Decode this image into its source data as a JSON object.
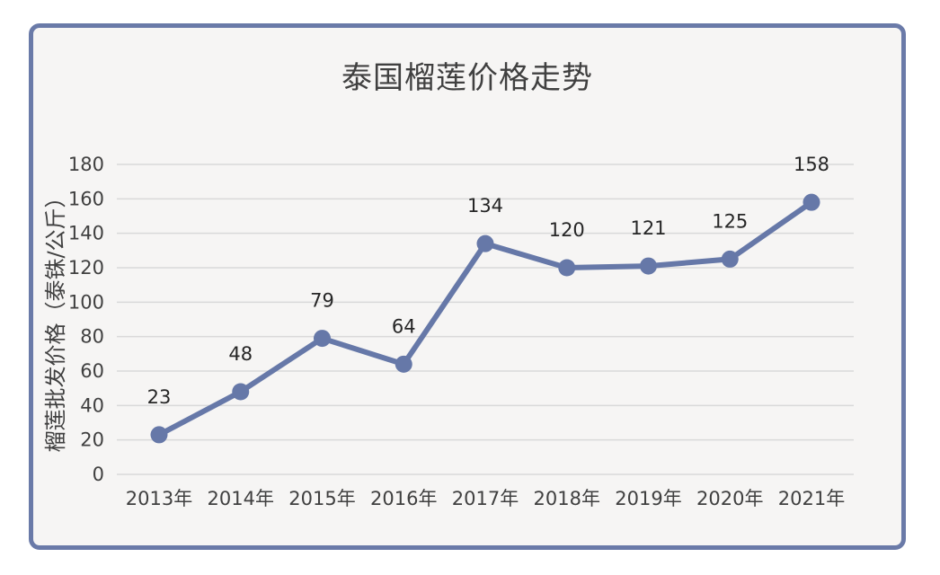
{
  "chart_data": {
    "type": "line",
    "title": "泰国榴莲价格走势",
    "ylabel": "榴莲批发价格（泰铢/公斤）",
    "xlabel": "",
    "categories": [
      "2013年",
      "2014年",
      "2015年",
      "2016年",
      "2017年",
      "2018年",
      "2019年",
      "2020年",
      "2021年"
    ],
    "values": [
      23,
      48,
      79,
      64,
      134,
      120,
      121,
      125,
      158
    ],
    "ylim": [
      0,
      180
    ],
    "yticks": [
      0,
      20,
      40,
      60,
      80,
      100,
      120,
      140,
      160,
      180
    ],
    "grid": true,
    "legend": "none",
    "colors": {
      "line": "#6678a8",
      "grid": "#d9d9d9",
      "frame": "#6a7aa8"
    }
  }
}
